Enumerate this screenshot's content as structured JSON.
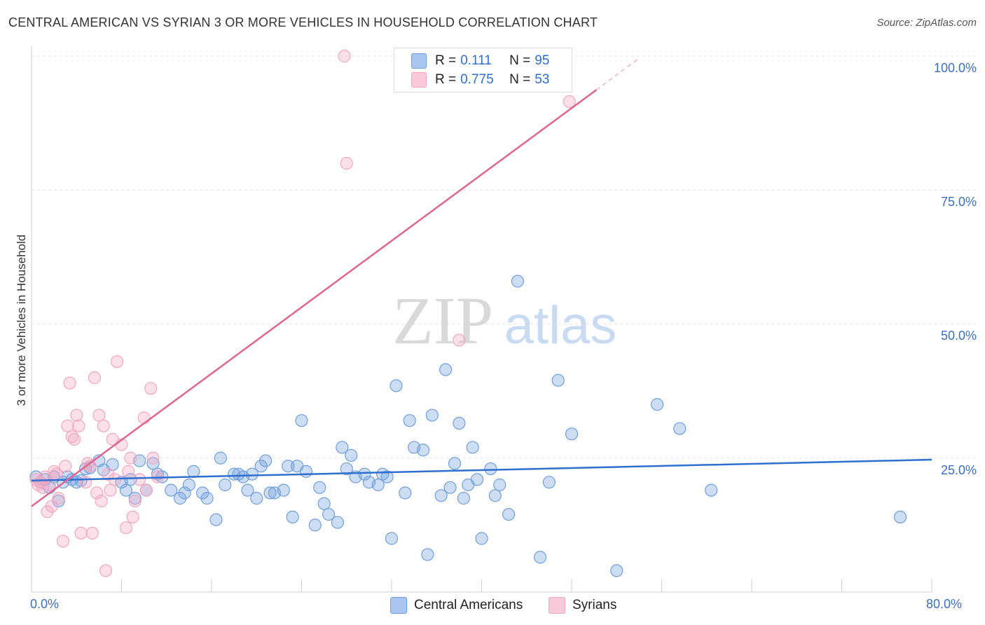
{
  "header": {
    "title": "CENTRAL AMERICAN VS SYRIAN 3 OR MORE VEHICLES IN HOUSEHOLD CORRELATION CHART",
    "source": "Source: ZipAtlas.com"
  },
  "watermark": {
    "zip": "ZIP",
    "atlas": "atlas"
  },
  "legend": {
    "rows": [
      {
        "r_label": "R =",
        "r_value": "0.111",
        "n_label": "N =",
        "n_value": "95",
        "color": "#a9c6f0"
      },
      {
        "r_label": "R =",
        "r_value": "0.775",
        "n_label": "N =",
        "n_value": "53",
        "color": "#f6b9cc"
      }
    ]
  },
  "bottom_legend": {
    "central": "Central Americans",
    "syrians": "Syrians"
  },
  "axes": {
    "x_min_label": "0.0%",
    "x_max_label": "80.0%",
    "y_ticks": [
      "100.0%",
      "75.0%",
      "50.0%",
      "25.0%"
    ]
  },
  "chart_data": {
    "type": "scatter",
    "title": "CENTRAL AMERICAN VS SYRIAN 3 OR MORE VEHICLES IN HOUSEHOLD CORRELATION CHART",
    "xlabel": "",
    "ylabel": "3 or more Vehicles in Household",
    "xlim": [
      0,
      80
    ],
    "ylim": [
      0,
      100
    ],
    "grid": true,
    "y_gridlines": [
      25,
      50,
      75,
      100
    ],
    "legend_position": "top-center",
    "series": [
      {
        "name": "Central Americans",
        "color": "#6f9fe0",
        "line_color": "#2f6fd0",
        "trend": {
          "x": [
            0,
            80
          ],
          "y": [
            20.8,
            24.7
          ]
        },
        "points": [
          [
            0.4,
            21.5
          ],
          [
            0.8,
            20.5
          ],
          [
            1.2,
            21.0
          ],
          [
            1.6,
            19.5
          ],
          [
            2.0,
            21.5
          ],
          [
            2.4,
            17.0
          ],
          [
            2.8,
            20.5
          ],
          [
            3.2,
            21.5
          ],
          [
            3.6,
            21.0
          ],
          [
            4.0,
            20.5
          ],
          [
            4.4,
            20.8
          ],
          [
            4.8,
            23.0
          ],
          [
            5.2,
            23.2
          ],
          [
            6.0,
            24.5
          ],
          [
            6.4,
            22.8
          ],
          [
            7.2,
            23.8
          ],
          [
            8.0,
            20.5
          ],
          [
            8.4,
            19.0
          ],
          [
            8.8,
            21.0
          ],
          [
            9.2,
            17.5
          ],
          [
            9.6,
            24.5
          ],
          [
            10.2,
            19.0
          ],
          [
            10.8,
            24.0
          ],
          [
            11.2,
            22.0
          ],
          [
            11.6,
            21.5
          ],
          [
            12.4,
            19.0
          ],
          [
            13.2,
            17.5
          ],
          [
            13.6,
            18.5
          ],
          [
            14.0,
            20.0
          ],
          [
            14.4,
            22.5
          ],
          [
            15.2,
            18.5
          ],
          [
            15.6,
            17.5
          ],
          [
            16.4,
            13.5
          ],
          [
            16.8,
            25.0
          ],
          [
            17.2,
            20.0
          ],
          [
            18.0,
            22.0
          ],
          [
            18.4,
            22.0
          ],
          [
            18.8,
            21.5
          ],
          [
            19.2,
            19.0
          ],
          [
            19.6,
            22.0
          ],
          [
            20.0,
            17.5
          ],
          [
            20.4,
            23.5
          ],
          [
            20.8,
            24.5
          ],
          [
            21.2,
            18.5
          ],
          [
            21.6,
            18.5
          ],
          [
            22.4,
            19.0
          ],
          [
            22.8,
            23.5
          ],
          [
            23.2,
            14.0
          ],
          [
            23.6,
            23.5
          ],
          [
            24.0,
            32.0
          ],
          [
            24.4,
            22.5
          ],
          [
            25.2,
            12.5
          ],
          [
            25.6,
            19.5
          ],
          [
            26.0,
            16.5
          ],
          [
            26.4,
            14.5
          ],
          [
            27.2,
            13.0
          ],
          [
            27.6,
            27.0
          ],
          [
            28.0,
            23.0
          ],
          [
            28.4,
            25.5
          ],
          [
            28.8,
            21.5
          ],
          [
            29.6,
            22.0
          ],
          [
            30.0,
            20.5
          ],
          [
            30.8,
            20.0
          ],
          [
            31.2,
            22.0
          ],
          [
            31.6,
            21.5
          ],
          [
            32.0,
            10.0
          ],
          [
            32.4,
            38.5
          ],
          [
            33.2,
            18.5
          ],
          [
            33.6,
            32.0
          ],
          [
            34.0,
            27.0
          ],
          [
            34.8,
            26.5
          ],
          [
            35.2,
            7.0
          ],
          [
            35.6,
            33.0
          ],
          [
            36.4,
            18.0
          ],
          [
            36.8,
            41.5
          ],
          [
            37.2,
            19.5
          ],
          [
            37.6,
            24.0
          ],
          [
            38.0,
            31.5
          ],
          [
            38.4,
            17.5
          ],
          [
            38.8,
            20.0
          ],
          [
            39.2,
            27.0
          ],
          [
            39.6,
            21.0
          ],
          [
            40.0,
            10.0
          ],
          [
            40.8,
            23.0
          ],
          [
            41.2,
            18.0
          ],
          [
            41.6,
            20.0
          ],
          [
            42.4,
            14.5
          ],
          [
            43.2,
            58.0
          ],
          [
            45.2,
            6.5
          ],
          [
            46.0,
            20.5
          ],
          [
            46.8,
            39.5
          ],
          [
            48.0,
            29.5
          ],
          [
            52.0,
            4.0
          ],
          [
            55.6,
            35.0
          ],
          [
            57.6,
            30.5
          ],
          [
            60.4,
            19.0
          ],
          [
            77.2,
            14.0
          ]
        ]
      },
      {
        "name": "Syrians",
        "color": "#f3a7bf",
        "line_color": "#e06590",
        "trend": {
          "x": [
            0,
            50.2
          ],
          "y": [
            16.0,
            93.7
          ],
          "dashed_to": [
            53.8,
            99.3
          ]
        },
        "points": [
          [
            0.4,
            21.0
          ],
          [
            0.6,
            20.0
          ],
          [
            0.8,
            20.5
          ],
          [
            1.0,
            19.5
          ],
          [
            1.2,
            21.5
          ],
          [
            1.4,
            15.0
          ],
          [
            1.6,
            20.0
          ],
          [
            1.8,
            16.0
          ],
          [
            2.0,
            22.5
          ],
          [
            2.2,
            22.0
          ],
          [
            2.4,
            17.5
          ],
          [
            2.8,
            9.5
          ],
          [
            3.0,
            23.5
          ],
          [
            3.2,
            31.0
          ],
          [
            3.4,
            39.0
          ],
          [
            3.6,
            29.0
          ],
          [
            3.8,
            28.5
          ],
          [
            4.0,
            33.0
          ],
          [
            4.2,
            31.0
          ],
          [
            4.4,
            11.0
          ],
          [
            4.8,
            20.5
          ],
          [
            5.0,
            24.0
          ],
          [
            5.2,
            23.5
          ],
          [
            5.4,
            11.0
          ],
          [
            5.6,
            40.0
          ],
          [
            5.8,
            18.5
          ],
          [
            6.0,
            33.0
          ],
          [
            6.2,
            17.0
          ],
          [
            6.4,
            31.0
          ],
          [
            6.6,
            4.0
          ],
          [
            6.8,
            22.0
          ],
          [
            7.0,
            19.0
          ],
          [
            7.2,
            28.5
          ],
          [
            7.4,
            21.0
          ],
          [
            7.6,
            43.0
          ],
          [
            8.0,
            27.5
          ],
          [
            8.4,
            12.0
          ],
          [
            8.6,
            22.5
          ],
          [
            8.8,
            25.0
          ],
          [
            9.0,
            14.0
          ],
          [
            9.2,
            17.0
          ],
          [
            9.6,
            21.0
          ],
          [
            10.0,
            32.5
          ],
          [
            10.2,
            19.0
          ],
          [
            10.6,
            38.0
          ],
          [
            10.8,
            25.0
          ],
          [
            11.2,
            21.5
          ],
          [
            27.8,
            100.0
          ],
          [
            28.0,
            80.0
          ],
          [
            38.0,
            47.0
          ],
          [
            47.8,
            91.5
          ]
        ]
      }
    ]
  }
}
